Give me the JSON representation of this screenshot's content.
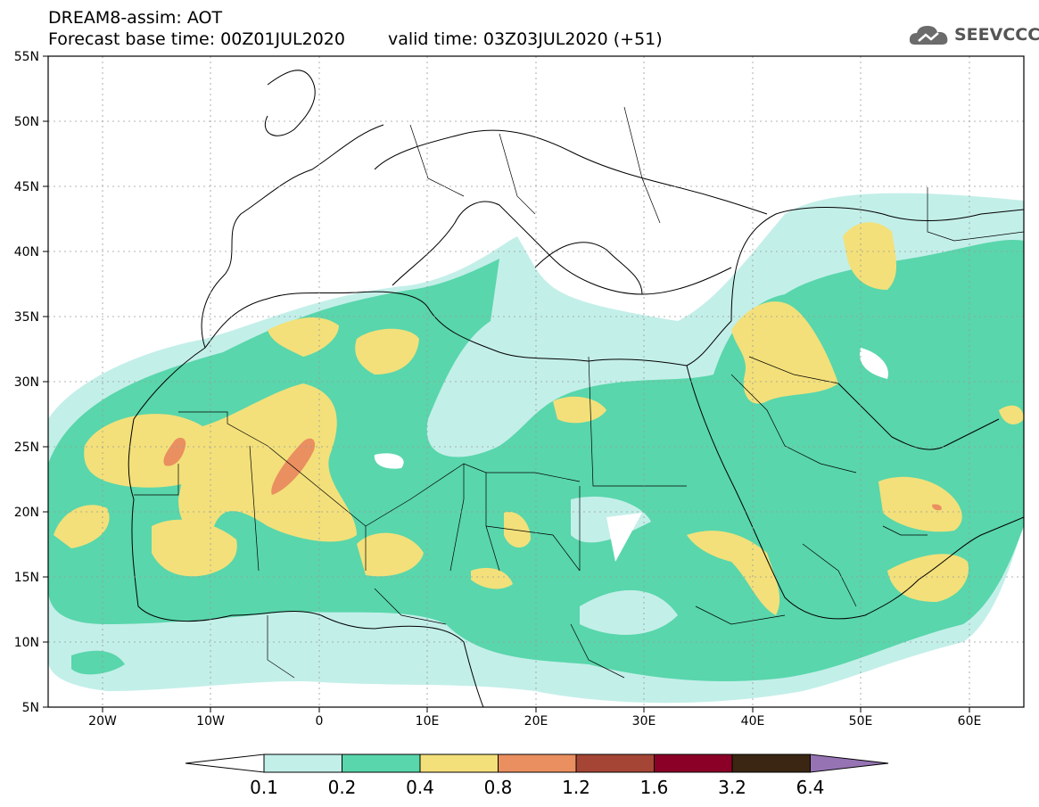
{
  "header": {
    "title": "DREAM8-assim: AOT",
    "base_time": "Forecast base time: 00Z01JUL2020",
    "valid_time": "valid time: 03Z03JUL2020 (+51)"
  },
  "logo": {
    "text": "SEEVCCC",
    "icon": "cloud-icon"
  },
  "map": {
    "lat_labels": [
      "55N",
      "50N",
      "45N",
      "40N",
      "35N",
      "30N",
      "25N",
      "20N",
      "15N",
      "10N",
      "5N"
    ],
    "lon_labels": [
      "20W",
      "10W",
      "0",
      "10E",
      "20E",
      "30E",
      "40E",
      "50E",
      "60E"
    ],
    "lon_range": [
      -25,
      65
    ],
    "lat_range": [
      5,
      55
    ]
  },
  "legend": {
    "levels": [
      "0.1",
      "0.2",
      "0.4",
      "0.8",
      "1.2",
      "1.6",
      "3.2",
      "6.4"
    ],
    "colors": [
      "#c3efe9",
      "#59d6ab",
      "#f3e07a",
      "#ea8f60",
      "#a54535",
      "#8a0027",
      "#3a2612",
      "#9674b4"
    ],
    "under_color": "#ffffff"
  }
}
